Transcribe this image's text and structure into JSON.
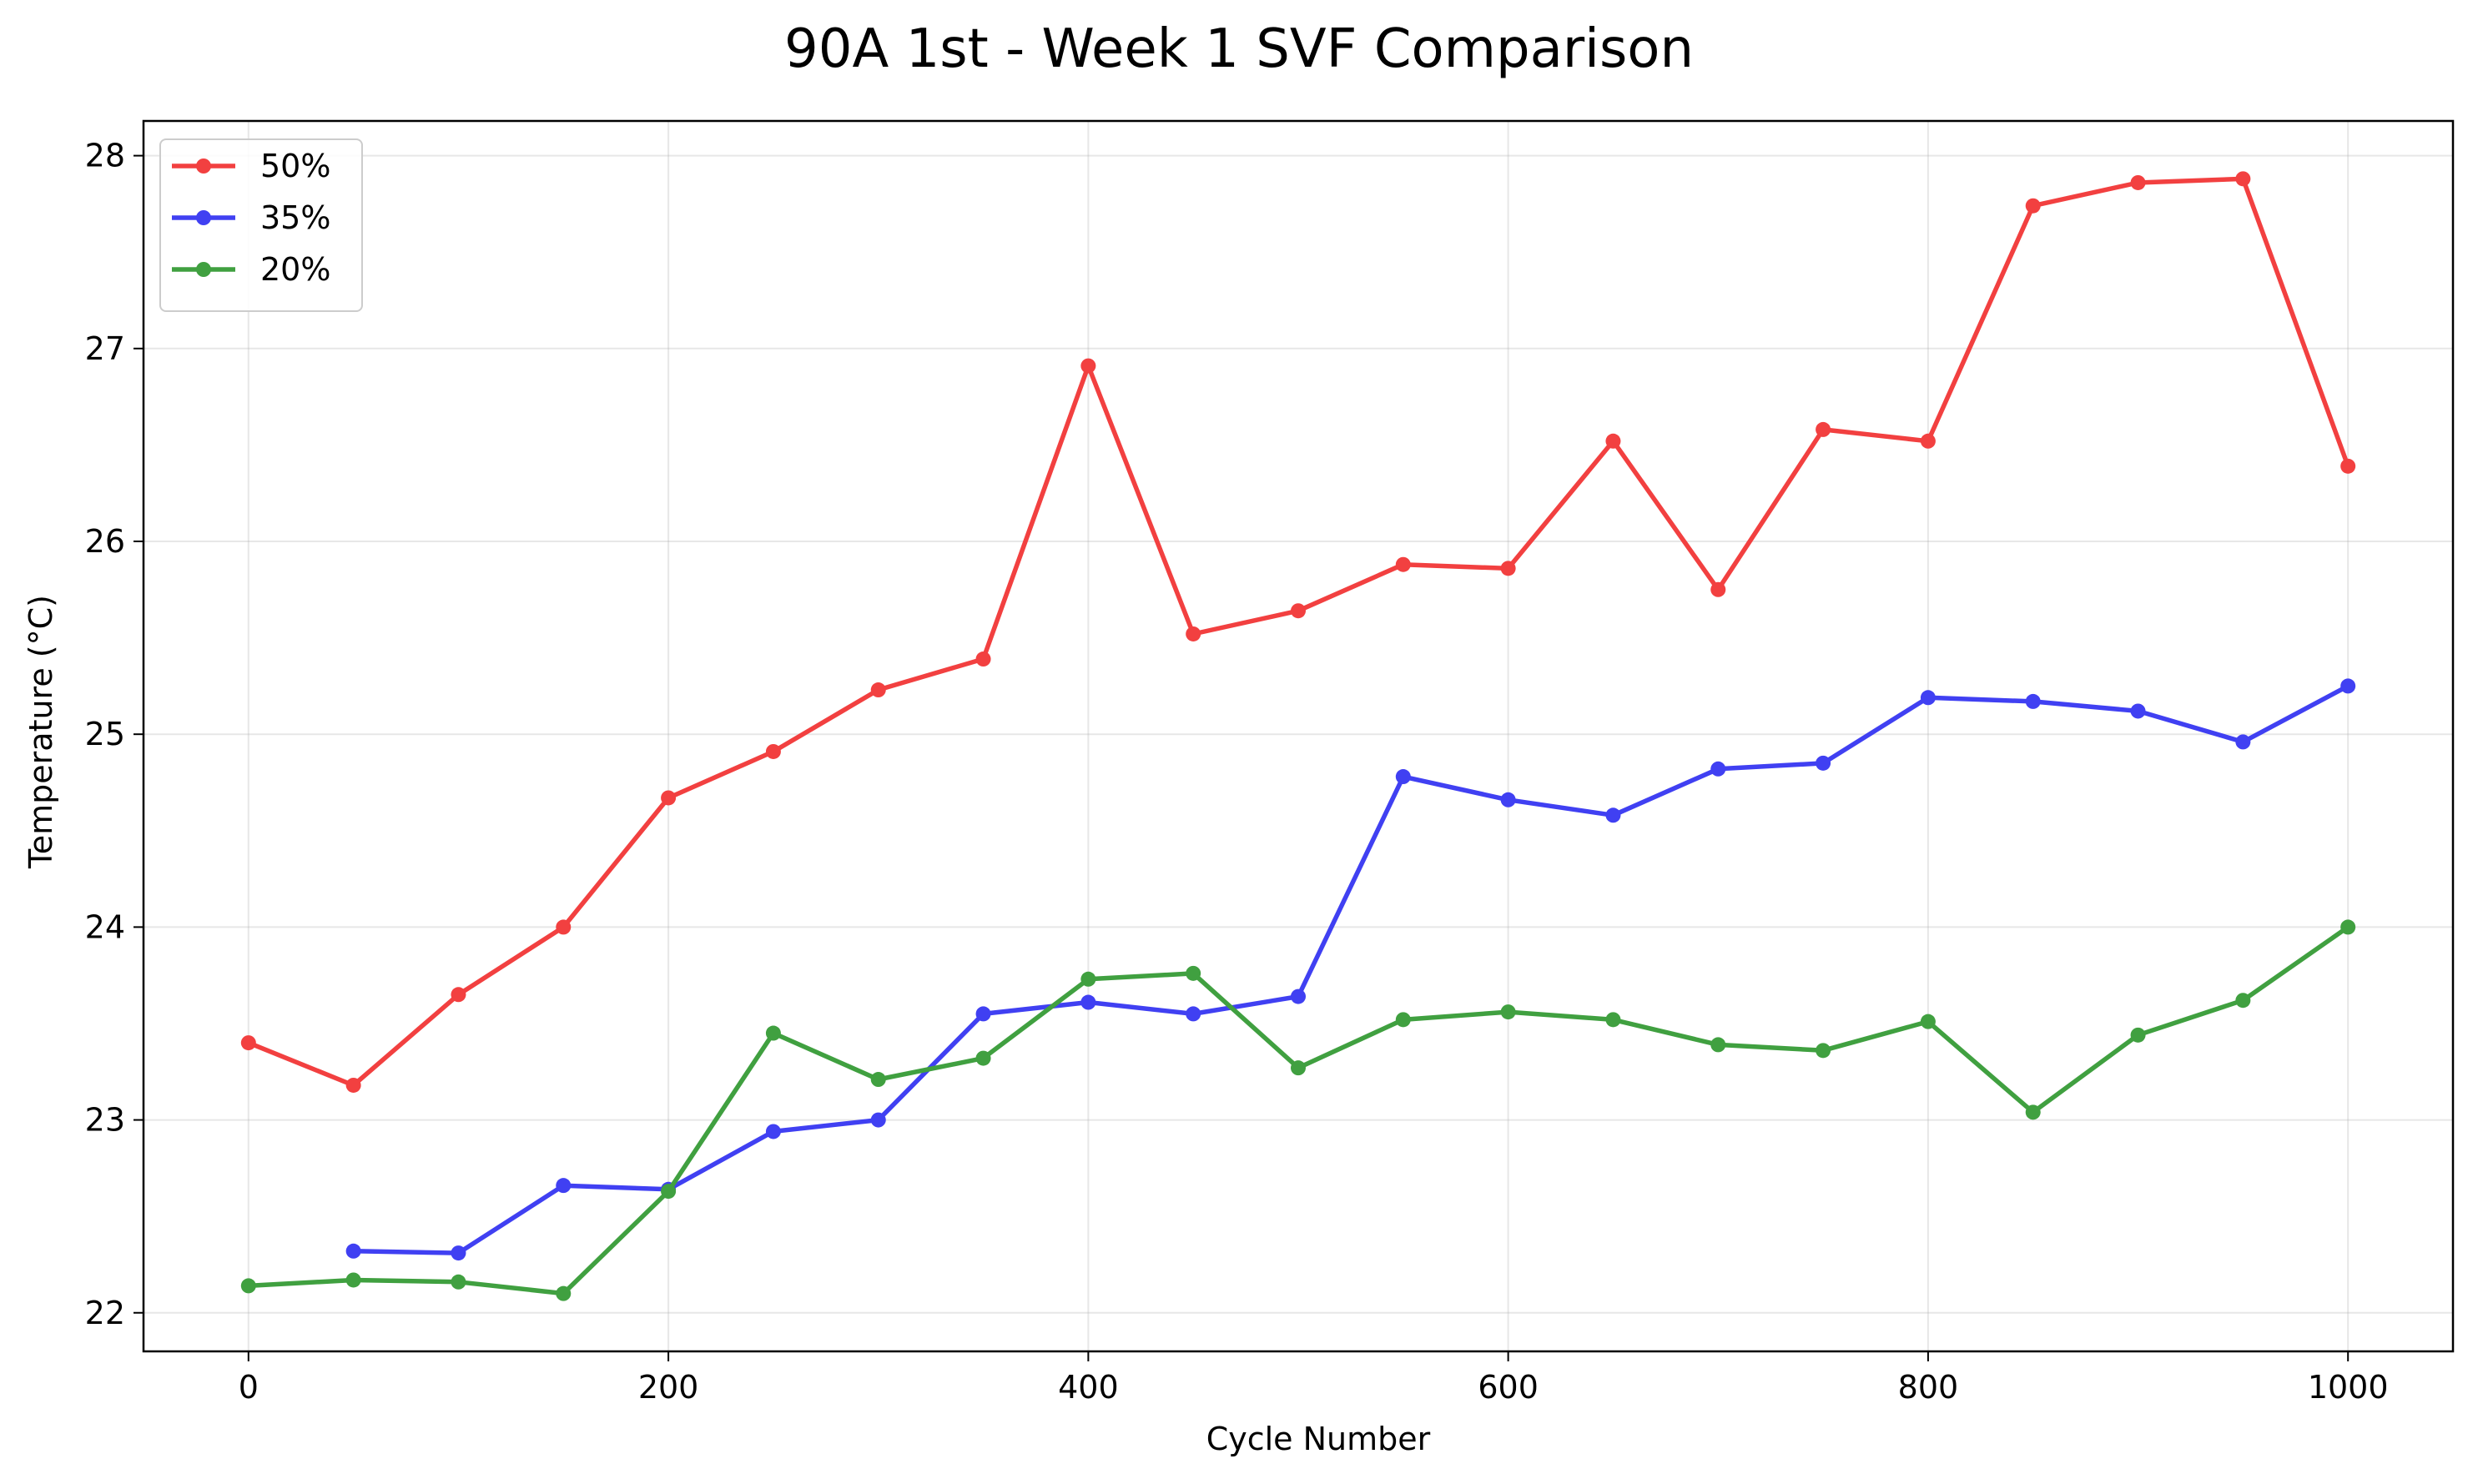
{
  "chart_data": {
    "type": "line",
    "title": "90A 1st - Week 1 SVF Comparison",
    "xlabel": "Cycle Number",
    "ylabel": "Temperature (°C)",
    "xlim": [
      -50,
      1050
    ],
    "ylim": [
      21.8,
      28.18
    ],
    "xticks": [
      0,
      200,
      400,
      600,
      800,
      1000
    ],
    "yticks": [
      22,
      23,
      24,
      25,
      26,
      27,
      28
    ],
    "grid": true,
    "legend_position": "top-left",
    "series": [
      {
        "name": "50%",
        "color": "#f24040",
        "x": [
          0,
          50,
          100,
          150,
          200,
          250,
          300,
          350,
          400,
          450,
          500,
          550,
          600,
          650,
          700,
          750,
          800,
          850,
          900,
          950,
          1000
        ],
        "values": [
          23.4,
          23.18,
          23.65,
          24.0,
          24.67,
          24.91,
          25.23,
          25.39,
          26.91,
          25.52,
          25.64,
          25.88,
          25.86,
          26.52,
          25.75,
          26.58,
          26.52,
          27.74,
          27.86,
          27.88,
          26.39
        ]
      },
      {
        "name": "35%",
        "color": "#4040f2",
        "x": [
          50,
          100,
          150,
          200,
          250,
          300,
          350,
          400,
          450,
          500,
          550,
          600,
          650,
          700,
          750,
          800,
          850,
          900,
          950,
          1000
        ],
        "values": [
          22.32,
          22.31,
          22.66,
          22.64,
          22.94,
          23.0,
          23.55,
          23.61,
          23.55,
          23.64,
          24.78,
          24.66,
          24.58,
          24.82,
          24.85,
          25.19,
          25.17,
          25.12,
          24.96,
          25.25
        ]
      },
      {
        "name": "20%",
        "color": "#40a040",
        "x": [
          0,
          50,
          100,
          150,
          200,
          250,
          300,
          350,
          400,
          450,
          500,
          550,
          600,
          650,
          700,
          750,
          800,
          850,
          900,
          950,
          1000
        ],
        "values": [
          22.14,
          22.17,
          22.16,
          22.1,
          22.63,
          23.45,
          23.21,
          23.32,
          23.73,
          23.76,
          23.27,
          23.52,
          23.56,
          23.52,
          23.39,
          23.36,
          23.51,
          23.04,
          23.44,
          23.62,
          24.0
        ]
      }
    ]
  }
}
